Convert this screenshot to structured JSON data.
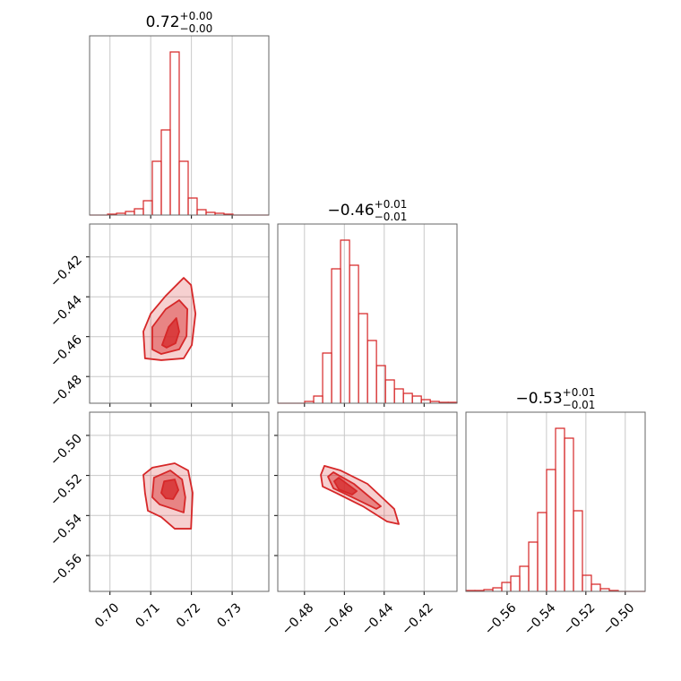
{
  "chart_data": [
    {
      "type": "histogram",
      "title": {
        "value": "0.72",
        "plus": "+0.00",
        "minus": "−0.00"
      },
      "color": "#d62728",
      "grid": true,
      "bins": [
        0.695,
        0.6972,
        0.6994,
        0.7016,
        0.7038,
        0.706,
        0.7082,
        0.7104,
        0.7126,
        0.7148,
        0.717,
        0.7192,
        0.7214,
        0.7236,
        0.7258,
        0.728,
        0.7302,
        0.7324,
        0.7346,
        0.7368,
        0.739
      ],
      "counts": [
        0,
        0,
        1,
        2,
        4,
        7,
        16,
        60,
        95,
        182,
        60,
        19,
        6,
        3,
        2,
        1,
        0,
        0,
        0,
        0
      ],
      "xlim": [
        0.695,
        0.739
      ],
      "ylim": [
        0,
        200
      ],
      "xticks": [
        0.7,
        0.71,
        0.72,
        0.73
      ]
    },
    {
      "type": "contour",
      "color": "#d62728",
      "grid": true,
      "xlim": [
        0.695,
        0.739
      ],
      "ylim": [
        -0.4934,
        -0.4035
      ],
      "xticks": [
        0.7,
        0.71,
        0.72,
        0.73
      ],
      "yticks": [
        {
          "value": -0.42,
          "label": "−0.42"
        },
        {
          "value": -0.44,
          "label": "−0.44"
        },
        {
          "value": -0.46,
          "label": "−0.46"
        },
        {
          "value": -0.48,
          "label": "−0.48"
        }
      ],
      "contours": [
        {
          "x": [
            0.7086,
            0.7082,
            0.71,
            0.7137,
            0.7181,
            0.7199,
            0.721,
            0.7201,
            0.7181,
            0.7126
          ],
          "y": [
            -0.4709,
            -0.4574,
            -0.4485,
            -0.4395,
            -0.4305,
            -0.4341,
            -0.4485,
            -0.4642,
            -0.4709,
            -0.4718
          ]
        },
        {
          "x": [
            0.7104,
            0.7104,
            0.7137,
            0.717,
            0.719,
            0.7188,
            0.717,
            0.7126
          ],
          "y": [
            -0.4664,
            -0.4552,
            -0.4462,
            -0.4417,
            -0.4462,
            -0.4597,
            -0.4664,
            -0.4687
          ]
        },
        {
          "x": [
            0.7128,
            0.7144,
            0.7163,
            0.717,
            0.7161,
            0.7139
          ],
          "y": [
            -0.4642,
            -0.4552,
            -0.4507,
            -0.4575,
            -0.4633,
            -0.4655
          ]
        }
      ]
    },
    {
      "type": "histogram",
      "title": {
        "value": "−0.46",
        "plus": "+0.01",
        "minus": "−0.01"
      },
      "color": "#d62728",
      "grid": true,
      "bins": [
        -0.4934,
        -0.4889,
        -0.4844,
        -0.4799,
        -0.4754,
        -0.4709,
        -0.4664,
        -0.4619,
        -0.4574,
        -0.4529,
        -0.4484,
        -0.4439,
        -0.4394,
        -0.4349,
        -0.4304,
        -0.4259,
        -0.4214,
        -0.4169,
        -0.4124,
        -0.4079,
        -0.4035
      ],
      "counts": [
        0,
        0,
        0,
        2,
        8,
        56,
        150,
        182,
        154,
        100,
        70,
        42,
        26,
        16,
        11,
        8,
        4,
        2,
        1,
        1
      ],
      "xlim": [
        -0.4934,
        -0.4035
      ],
      "ylim": [
        0,
        200
      ],
      "xticks": [
        -0.48,
        -0.46,
        -0.44,
        -0.42
      ]
    },
    {
      "type": "contour",
      "color": "#d62728",
      "grid": true,
      "xlim": [
        0.695,
        0.739
      ],
      "ylim": [
        -0.5779,
        -0.4884
      ],
      "xticks": [
        {
          "value": 0.7,
          "label": "0.70"
        },
        {
          "value": 0.71,
          "label": "0.71"
        },
        {
          "value": 0.72,
          "label": "0.72"
        },
        {
          "value": 0.73,
          "label": "0.73"
        }
      ],
      "yticks": [
        {
          "value": -0.5,
          "label": "−0.50"
        },
        {
          "value": -0.52,
          "label": "−0.52"
        },
        {
          "value": -0.54,
          "label": "−0.54"
        },
        {
          "value": -0.56,
          "label": "−0.56"
        }
      ],
      "contours": [
        {
          "x": [
            0.7086,
            0.7082,
            0.7104,
            0.7159,
            0.7192,
            0.7203,
            0.7199,
            0.7159,
            0.7126,
            0.7093
          ],
          "y": [
            -0.5287,
            -0.5197,
            -0.5161,
            -0.5139,
            -0.5175,
            -0.5287,
            -0.5466,
            -0.5466,
            -0.5408,
            -0.5376
          ]
        },
        {
          "x": [
            0.7104,
            0.7108,
            0.7148,
            0.7177,
            0.7185,
            0.7181,
            0.7155,
            0.7122
          ],
          "y": [
            -0.5309,
            -0.5211,
            -0.5175,
            -0.522,
            -0.5309,
            -0.5385,
            -0.5367,
            -0.5345
          ]
        },
        {
          "x": [
            0.7126,
            0.7133,
            0.7159,
            0.7168,
            0.7155,
            0.7137
          ],
          "y": [
            -0.5287,
            -0.5229,
            -0.522,
            -0.5273,
            -0.5318,
            -0.5314
          ]
        }
      ]
    },
    {
      "type": "contour",
      "color": "#d62728",
      "grid": true,
      "xlim": [
        -0.4934,
        -0.4035
      ],
      "ylim": [
        -0.5779,
        -0.4884
      ],
      "xticks": [
        {
          "value": -0.48,
          "label": "−0.48"
        },
        {
          "value": -0.46,
          "label": "−0.46"
        },
        {
          "value": -0.44,
          "label": "−0.44"
        },
        {
          "value": -0.42,
          "label": "−0.42"
        }
      ],
      "yticks": [
        -0.5,
        -0.52,
        -0.54,
        -0.56
      ],
      "contours": [
        {
          "x": [
            -0.4718,
            -0.47,
            -0.4619,
            -0.4484,
            -0.435,
            -0.4327,
            -0.4386,
            -0.4507,
            -0.4642,
            -0.4709
          ],
          "y": [
            -0.5197,
            -0.5152,
            -0.5175,
            -0.5242,
            -0.5367,
            -0.5443,
            -0.543,
            -0.5354,
            -0.5287,
            -0.5255
          ]
        },
        {
          "x": [
            -0.4682,
            -0.4655,
            -0.4552,
            -0.4417,
            -0.444,
            -0.4552,
            -0.4655
          ],
          "y": [
            -0.5206,
            -0.5184,
            -0.5242,
            -0.5354,
            -0.5367,
            -0.5313,
            -0.5264
          ]
        },
        {
          "x": [
            -0.4651,
            -0.4628,
            -0.4538,
            -0.4561,
            -0.4628
          ],
          "y": [
            -0.5229,
            -0.5211,
            -0.5278,
            -0.5296,
            -0.5269
          ]
        }
      ]
    },
    {
      "type": "histogram",
      "title": {
        "value": "−0.53",
        "plus": "+0.01",
        "minus": "−0.01"
      },
      "color": "#d62728",
      "grid": true,
      "bins": [
        -0.5809,
        -0.57635,
        -0.5718,
        -0.56725,
        -0.5627,
        -0.55815,
        -0.5536,
        -0.54905,
        -0.5445,
        -0.53995,
        -0.5354,
        -0.53085,
        -0.5263,
        -0.52175,
        -0.5172,
        -0.51265,
        -0.5081,
        -0.50355,
        -0.499,
        -0.49445,
        -0.4899
      ],
      "counts": [
        1,
        1,
        2,
        4,
        10,
        17,
        28,
        55,
        88,
        136,
        182,
        171,
        90,
        18,
        8,
        3,
        1,
        0,
        0,
        0
      ],
      "xlim": [
        -0.5809,
        -0.4899
      ],
      "ylim": [
        0,
        200
      ],
      "xticks": [
        {
          "value": -0.56,
          "label": "−0.56"
        },
        {
          "value": -0.54,
          "label": "−0.54"
        },
        {
          "value": -0.52,
          "label": "−0.52"
        },
        {
          "value": -0.5,
          "label": "−0.50"
        }
      ]
    }
  ]
}
